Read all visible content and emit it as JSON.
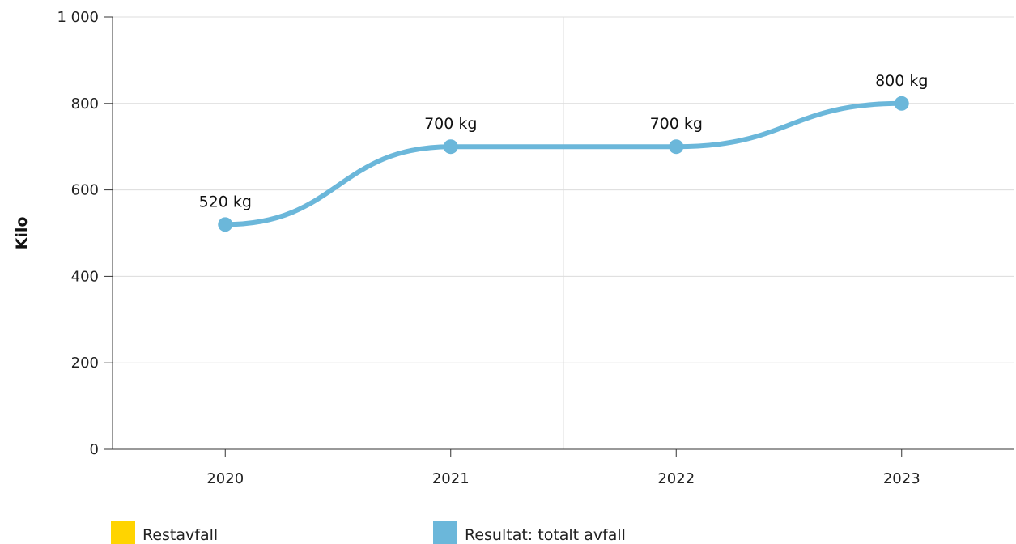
{
  "chart_data": {
    "type": "line",
    "categories": [
      "2020",
      "2021",
      "2022",
      "2023"
    ],
    "series": [
      {
        "name": "Resultat: totalt avfall",
        "values": [
          520,
          700,
          700,
          800
        ],
        "data_labels": [
          "520 kg",
          "700 kg",
          "700 kg",
          "800 kg"
        ],
        "color": "#6bb7da"
      }
    ],
    "legend_items": [
      {
        "name": "Restavfall",
        "color": "#ffd400"
      },
      {
        "name": "Resultat: totalt avfall",
        "color": "#6bb7da"
      }
    ],
    "y_ticks": [
      {
        "value": 0,
        "label": "0"
      },
      {
        "value": 200,
        "label": "200"
      },
      {
        "value": 400,
        "label": "400"
      },
      {
        "value": 600,
        "label": "600"
      },
      {
        "value": 800,
        "label": "800"
      },
      {
        "value": 1000,
        "label": "1 000"
      }
    ],
    "ylim": [
      0,
      1000
    ],
    "ylabel": "Kilo",
    "xlabel": "",
    "title": "",
    "grid": true,
    "legend_position": "bottom-left"
  }
}
